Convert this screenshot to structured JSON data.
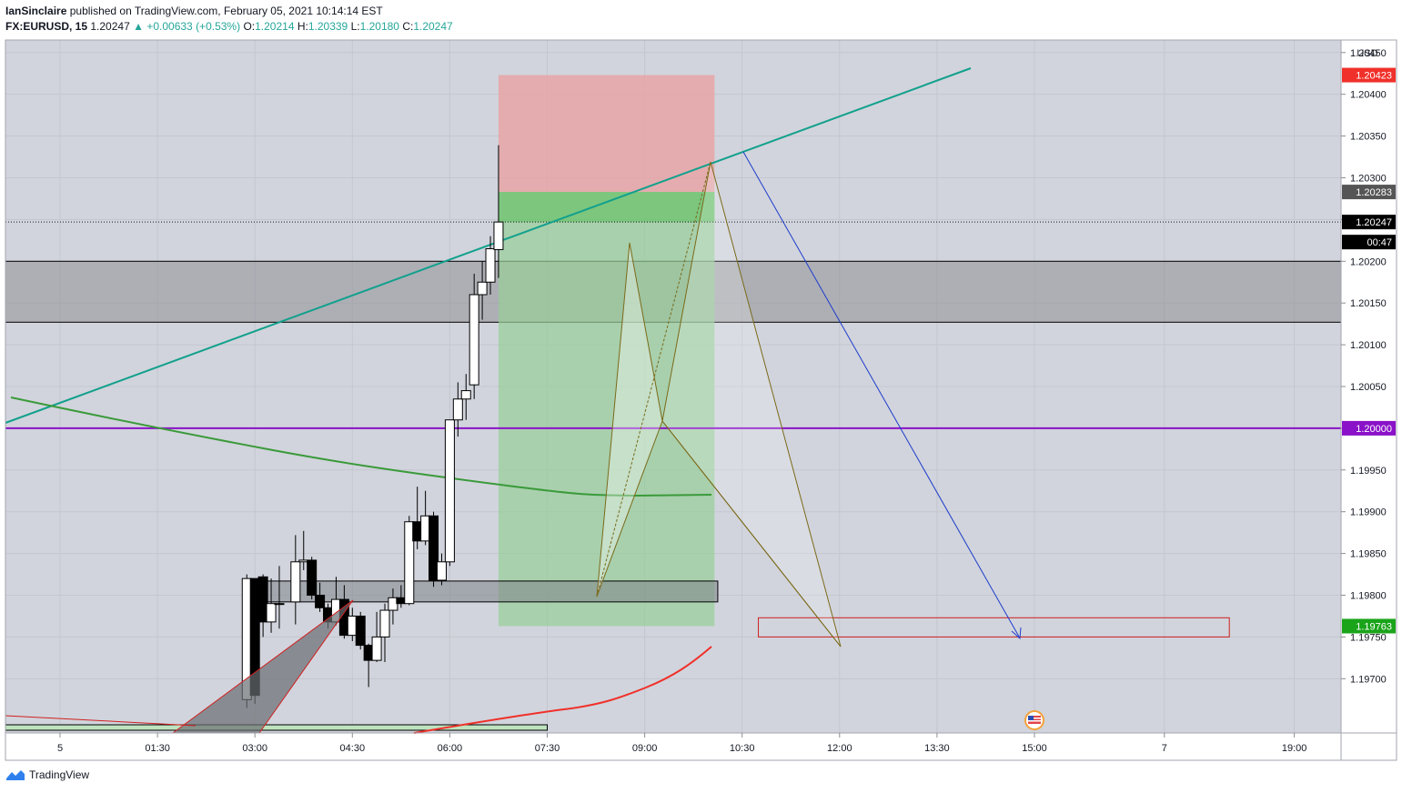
{
  "header": {
    "author": "IanSinclaire",
    "published_text": "published on TradingView.com, February 05, 2021 10:14:14 EST",
    "symbol": "FX:EURUSD, 15",
    "last": "1.20247",
    "arrow": "▲",
    "change": "+0.00633 (+0.53%)",
    "o_label": "O:",
    "o_value": "1.20214",
    "h_label": "H:",
    "h_value": "1.20339",
    "l_label": "L:",
    "l_value": "1.20180",
    "c_label": "C:",
    "c_value": "1.20247"
  },
  "footer": {
    "brand": "TradingView"
  },
  "colors": {
    "up_candle": "#ffffff",
    "down_candle": "#000000",
    "teal_trend": "#12a08d",
    "green_ma": "#3a9a3a",
    "red_ma": "#f0302a",
    "purple_level": "#8a12c8",
    "blue_arrow": "#1e3ccc",
    "pattern_line": "#7a6a1a",
    "stop_zone": "#e9a1a3",
    "target_zone": "#97cf97",
    "zone_gray": "#8f8f96"
  },
  "chart_data": {
    "type": "candlestick",
    "symbol": "FX:EURUSD",
    "interval": "15",
    "currency": "USD",
    "ylim": [
      1.19635,
      1.20465
    ],
    "yticks": [
      "1.19700",
      "1.19750",
      "1.19800",
      "1.19850",
      "1.19900",
      "1.19950",
      "1.20000",
      "1.20050",
      "1.20100",
      "1.20150",
      "1.20200",
      "1.20250",
      "1.20300",
      "1.20350",
      "1.20400",
      "1.20450"
    ],
    "xticks": [
      {
        "label": "5",
        "t": 0
      },
      {
        "label": "01:30",
        "t": 6
      },
      {
        "label": "03:00",
        "t": 12
      },
      {
        "label": "04:30",
        "t": 18
      },
      {
        "label": "06:00",
        "t": 24
      },
      {
        "label": "07:30",
        "t": 30
      },
      {
        "label": "09:00",
        "t": 36
      },
      {
        "label": "10:30",
        "t": 42
      },
      {
        "label": "12:00",
        "t": 48
      },
      {
        "label": "13:30",
        "t": 54
      },
      {
        "label": "15:00",
        "t": 60
      },
      {
        "label": "7",
        "t": 68
      },
      {
        "label": "19:00",
        "t": 76
      }
    ],
    "candles": [
      {
        "t": 11.5,
        "o": 1.19675,
        "h": 1.19825,
        "l": 1.19665,
        "c": 1.1982
      },
      {
        "t": 12,
        "o": 1.1982,
        "h": 1.1982,
        "l": 1.1967,
        "c": 1.1968
      },
      {
        "t": 12.5,
        "o": 1.19822,
        "h": 1.19825,
        "l": 1.1975,
        "c": 1.19768
      },
      {
        "t": 13,
        "o": 1.19768,
        "h": 1.1982,
        "l": 1.19755,
        "c": 1.1979
      },
      {
        "t": 13.5,
        "o": 1.1979,
        "h": 1.19835,
        "l": 1.1976,
        "c": 1.1979
      },
      {
        "t": 14.5,
        "o": 1.19792,
        "h": 1.19872,
        "l": 1.19765,
        "c": 1.1984
      },
      {
        "t": 15,
        "o": 1.1984,
        "h": 1.19877,
        "l": 1.1983,
        "c": 1.19842
      },
      {
        "t": 15.5,
        "o": 1.19842,
        "h": 1.19846,
        "l": 1.19795,
        "c": 1.198
      },
      {
        "t": 16,
        "o": 1.198,
        "h": 1.19815,
        "l": 1.1978,
        "c": 1.19785
      },
      {
        "t": 16.5,
        "o": 1.19785,
        "h": 1.1979,
        "l": 1.1976,
        "c": 1.19768
      },
      {
        "t": 17,
        "o": 1.19768,
        "h": 1.19822,
        "l": 1.19764,
        "c": 1.19795
      },
      {
        "t": 17.5,
        "o": 1.19795,
        "h": 1.19812,
        "l": 1.19748,
        "c": 1.19752
      },
      {
        "t": 18,
        "o": 1.19752,
        "h": 1.19785,
        "l": 1.19745,
        "c": 1.19775
      },
      {
        "t": 18.5,
        "o": 1.19775,
        "h": 1.1978,
        "l": 1.19735,
        "c": 1.1974
      },
      {
        "t": 19,
        "o": 1.1974,
        "h": 1.19742,
        "l": 1.1969,
        "c": 1.19722
      },
      {
        "t": 19.5,
        "o": 1.19722,
        "h": 1.1978,
        "l": 1.1972,
        "c": 1.1975
      },
      {
        "t": 20,
        "o": 1.1975,
        "h": 1.1979,
        "l": 1.1972,
        "c": 1.19782
      },
      {
        "t": 20.5,
        "o": 1.19782,
        "h": 1.19808,
        "l": 1.19765,
        "c": 1.19797
      },
      {
        "t": 21,
        "o": 1.19797,
        "h": 1.19812,
        "l": 1.19785,
        "c": 1.1979
      },
      {
        "t": 21.5,
        "o": 1.1979,
        "h": 1.19895,
        "l": 1.19788,
        "c": 1.19888
      },
      {
        "t": 22,
        "o": 1.19888,
        "h": 1.1993,
        "l": 1.19855,
        "c": 1.19865
      },
      {
        "t": 22.5,
        "o": 1.19865,
        "h": 1.19925,
        "l": 1.1986,
        "c": 1.19895
      },
      {
        "t": 23,
        "o": 1.19895,
        "h": 1.199,
        "l": 1.1981,
        "c": 1.19818
      },
      {
        "t": 23.5,
        "o": 1.19818,
        "h": 1.1985,
        "l": 1.19812,
        "c": 1.1984
      },
      {
        "t": 24,
        "o": 1.1984,
        "h": 1.2001,
        "l": 1.19835,
        "c": 1.2001
      },
      {
        "t": 24.5,
        "o": 1.2001,
        "h": 1.20055,
        "l": 1.1999,
        "c": 1.20035
      },
      {
        "t": 25,
        "o": 1.20035,
        "h": 1.20065,
        "l": 1.2001,
        "c": 1.20045
      },
      {
        "t": 25.5,
        "o": 1.20052,
        "h": 1.20185,
        "l": 1.20035,
        "c": 1.2016
      },
      {
        "t": 26,
        "o": 1.2016,
        "h": 1.202,
        "l": 1.2013,
        "c": 1.20175
      },
      {
        "t": 26.5,
        "o": 1.20175,
        "h": 1.2023,
        "l": 1.2016,
        "c": 1.20215
      },
      {
        "t": 27,
        "o": 1.20214,
        "h": 1.20339,
        "l": 1.2018,
        "c": 1.20247
      }
    ],
    "price_labels": [
      {
        "text": "1.20423",
        "y": 1.20423,
        "bg": "#f0302a",
        "fg": "#ffffff"
      },
      {
        "text": "1.20283",
        "y": 1.20283,
        "bg": "#555555",
        "fg": "#ffffff"
      },
      {
        "text": "1.20247",
        "y": 1.20247,
        "bg": "#000000",
        "fg": "#ffffff"
      },
      {
        "text": "00:47",
        "y": 1.20223,
        "bg": "#000000",
        "fg": "#ffffff"
      },
      {
        "text": "1.20000",
        "y": 1.2,
        "bg": "#8a12c8",
        "fg": "#ffffff"
      },
      {
        "text": "1.19763",
        "y": 1.19763,
        "bg": "#1aa41a",
        "fg": "#ffffff"
      }
    ],
    "levels": {
      "round_level": 1.2,
      "last_price": 1.20247,
      "gray_zone": [
        1.20127,
        1.202
      ],
      "lower_zone": [
        1.19792,
        1.19817
      ],
      "short_position": {
        "t_start": 27,
        "t_end": 40.3,
        "entry": 1.20283,
        "stop": 1.20423,
        "target": 1.19763
      },
      "target_box": [
        1.1975,
        1.19773
      ]
    }
  }
}
